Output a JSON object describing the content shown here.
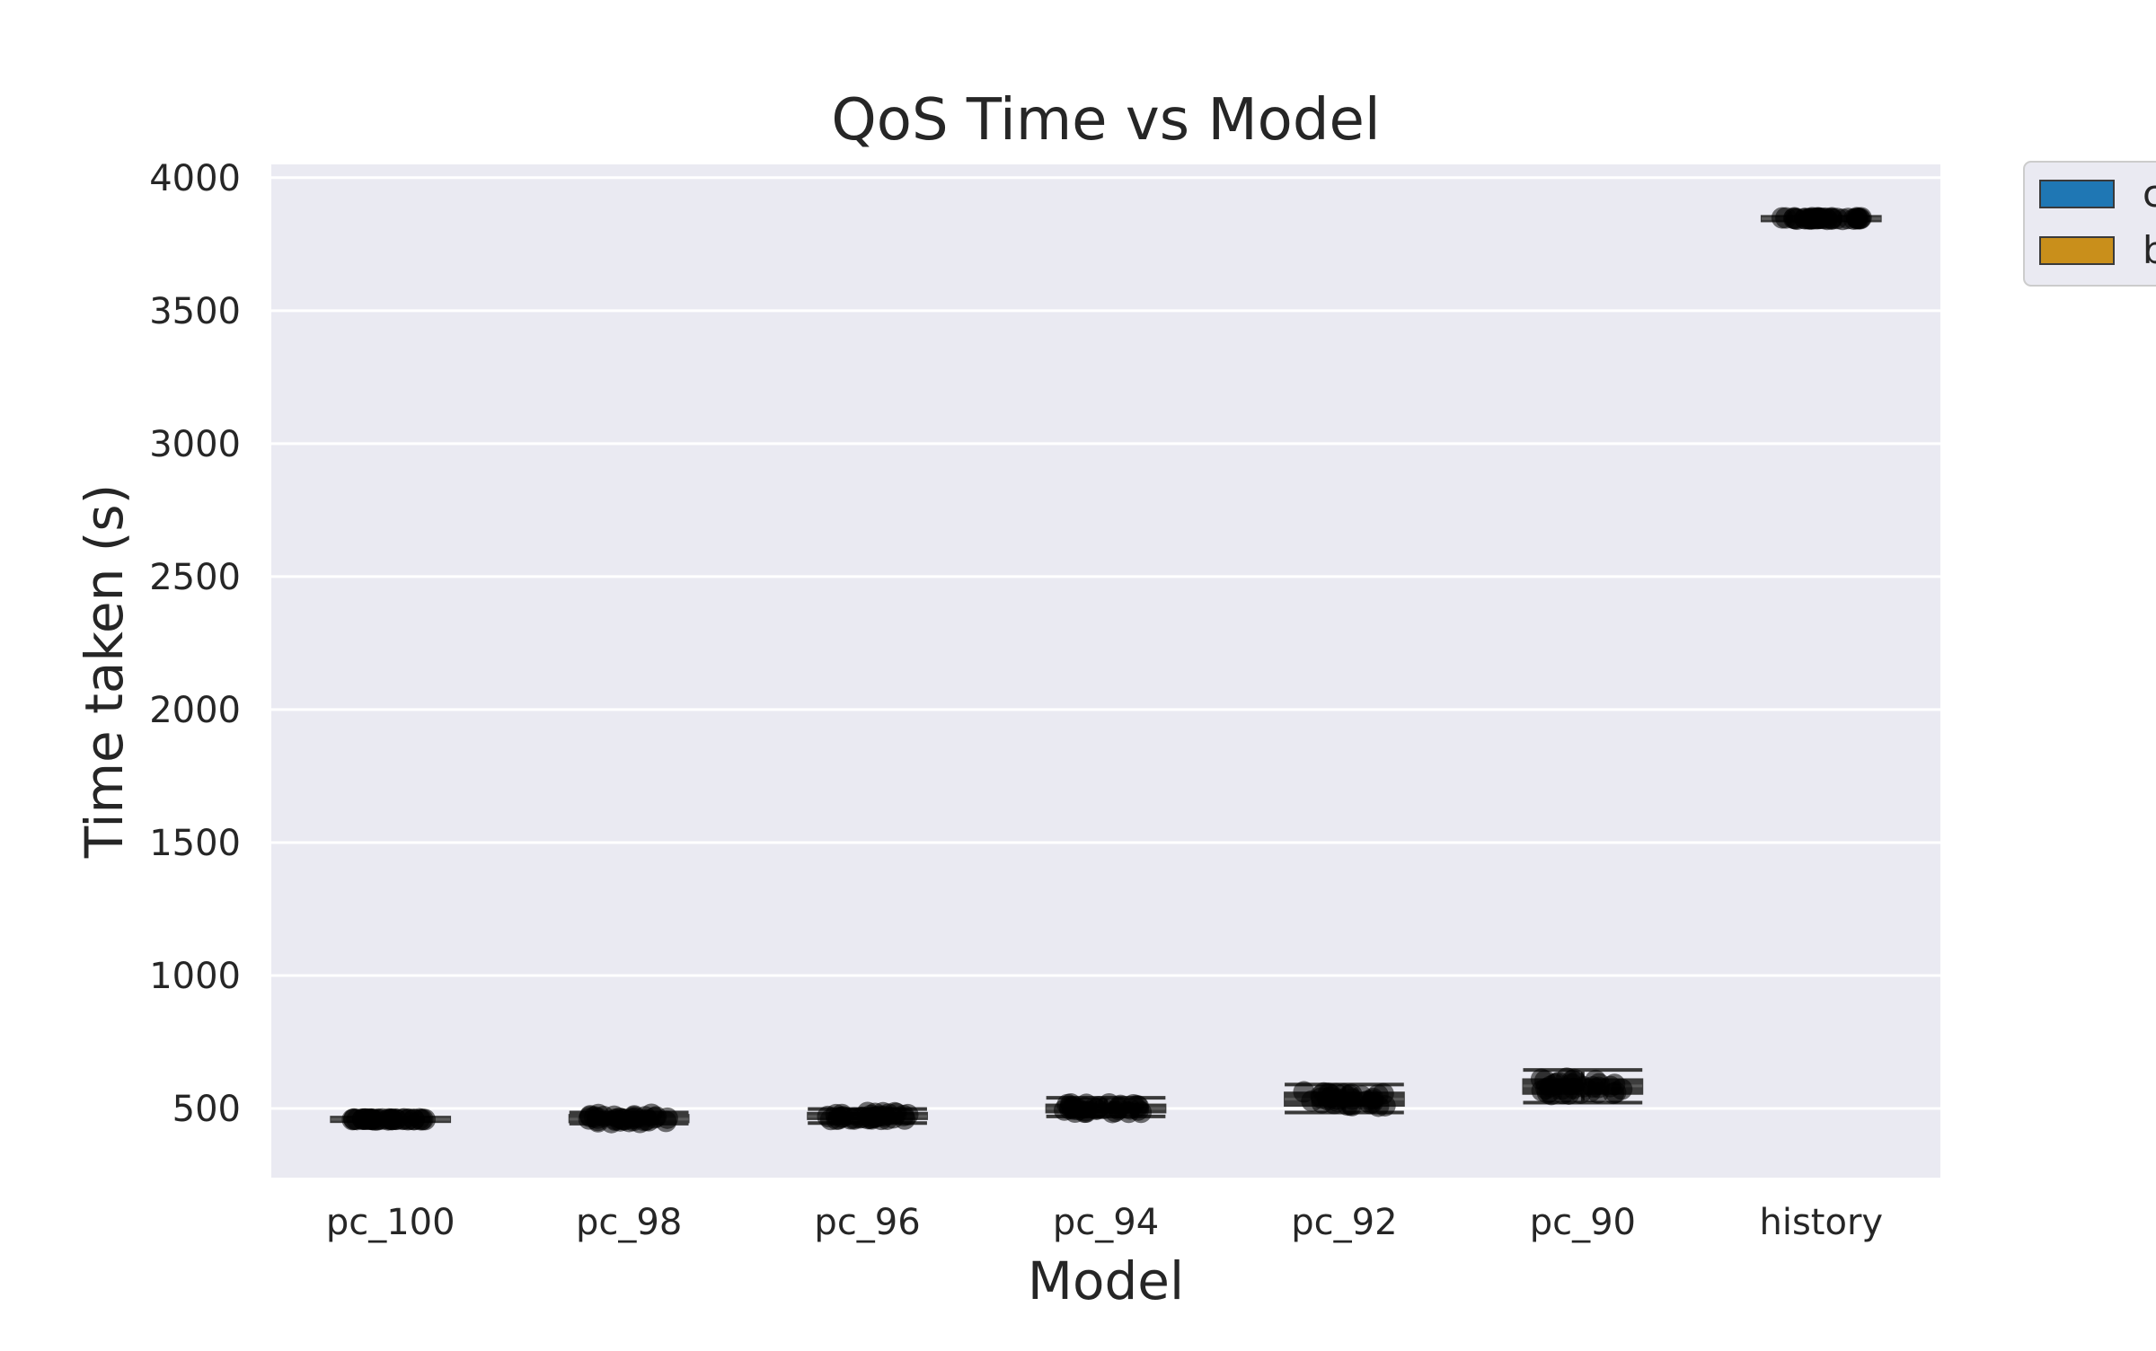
{
  "chart_data": {
    "type": "box",
    "title": "QoS Time vs Model",
    "xlabel": "Model",
    "ylabel": "Time taken (s)",
    "categories": [
      "pc_100",
      "pc_98",
      "pc_96",
      "pc_94",
      "pc_92",
      "pc_90",
      "history"
    ],
    "ylim": [
      240,
      4050
    ],
    "yticks": [
      500,
      1000,
      1500,
      2000,
      2500,
      3000,
      3500,
      4000
    ],
    "grid": true,
    "legend": {
      "placement": "outside top-right (clipped)",
      "entries": [
        {
          "label": "c",
          "color": "#1f77b4"
        },
        {
          "label": "b",
          "color": "#c98f1b"
        }
      ]
    },
    "series": [
      {
        "name": "c",
        "color": "#1f77b4",
        "boxes": [
          {
            "category": "pc_100",
            "min": 455,
            "q1": 457,
            "median": 459,
            "q3": 461,
            "max": 463
          },
          {
            "category": "pc_98",
            "min": 443,
            "q1": 448,
            "median": 460,
            "q3": 476,
            "max": 485
          },
          {
            "category": "pc_96",
            "min": 445,
            "q1": 460,
            "median": 470,
            "q3": 484,
            "max": 498
          },
          {
            "category": "pc_94",
            "min": 470,
            "q1": 485,
            "median": 500,
            "q3": 515,
            "max": 540
          },
          {
            "category": "pc_92",
            "min": 485,
            "q1": 510,
            "median": 535,
            "q3": 560,
            "max": 590
          },
          {
            "category": "pc_90",
            "min": 522,
            "q1": 555,
            "median": 585,
            "q3": 610,
            "max": 645
          },
          {
            "category": "history",
            "min": 3840,
            "q1": 3843,
            "median": 3846,
            "q3": 3849,
            "max": 3852
          }
        ]
      }
    ]
  }
}
